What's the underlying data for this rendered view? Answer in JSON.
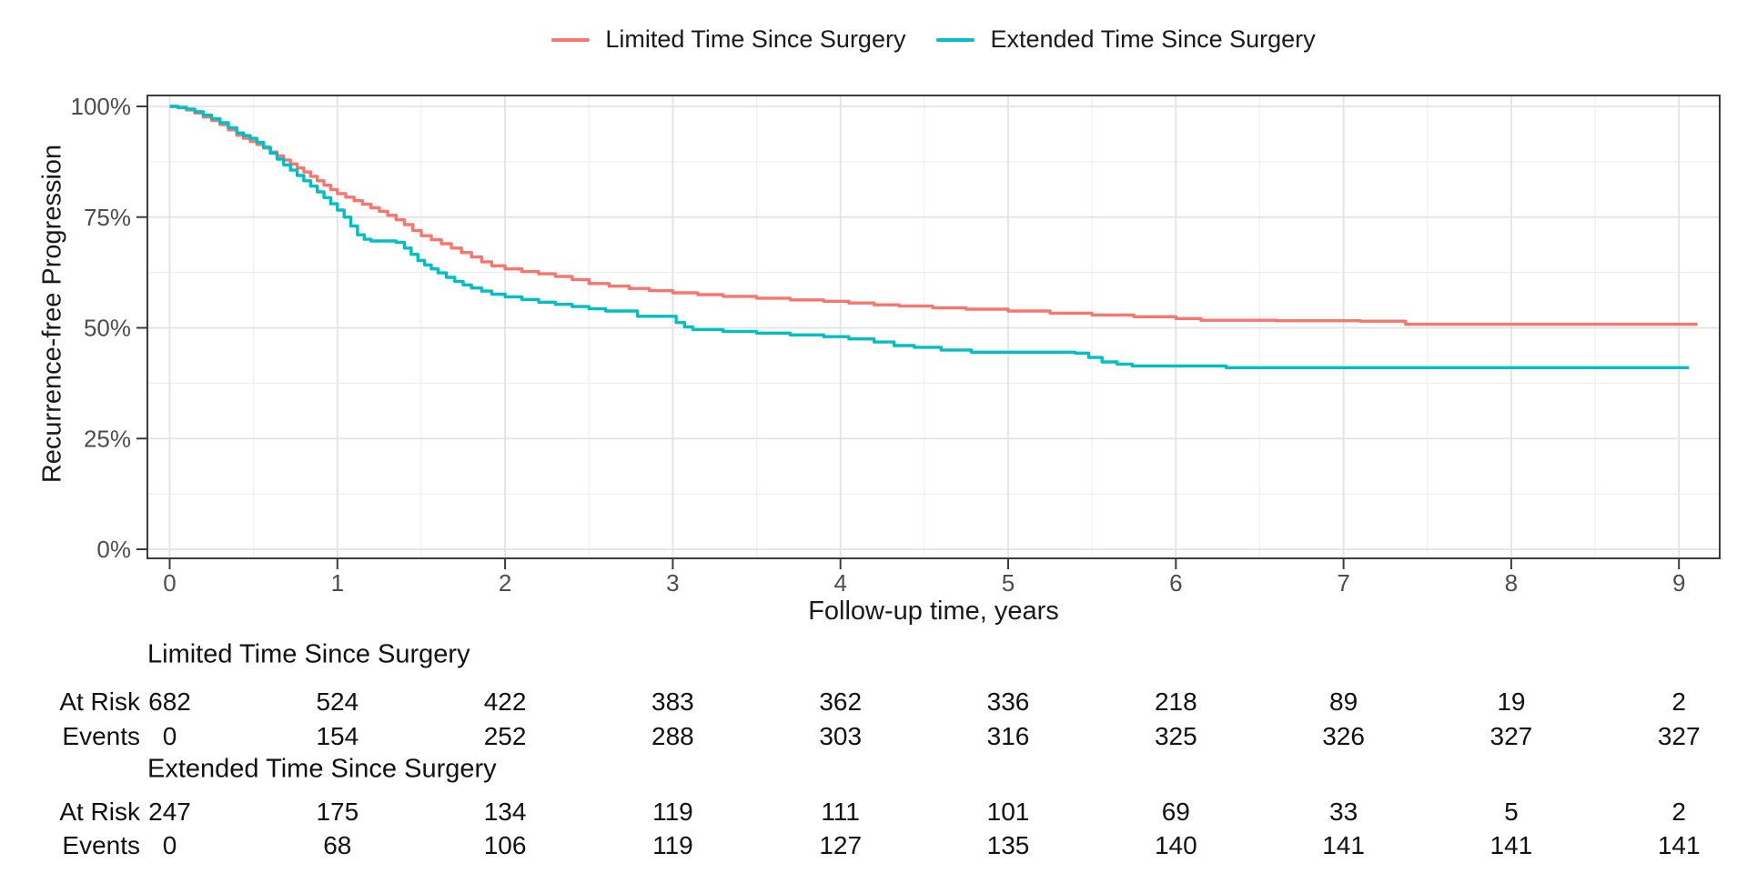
{
  "chart_data": {
    "type": "line",
    "subtype": "kaplan-meier-step-curves",
    "title": "",
    "xlabel": "Follow-up time, years",
    "ylabel": "Recurrence-free Progression",
    "xlim": [
      -0.13,
      9.25
    ],
    "ylim": [
      0,
      100
    ],
    "x_ticks": [
      {
        "v": 0,
        "label": "0"
      },
      {
        "v": 1,
        "label": "1"
      },
      {
        "v": 2,
        "label": "2"
      },
      {
        "v": 3,
        "label": "3"
      },
      {
        "v": 4,
        "label": "4"
      },
      {
        "v": 5,
        "label": "5"
      },
      {
        "v": 6,
        "label": "6"
      },
      {
        "v": 7,
        "label": "7"
      },
      {
        "v": 8,
        "label": "8"
      },
      {
        "v": 9,
        "label": "9"
      }
    ],
    "y_ticks": [
      {
        "v": 0,
        "label": "0%"
      },
      {
        "v": 25,
        "label": "25%"
      },
      {
        "v": 50,
        "label": "50%"
      },
      {
        "v": 75,
        "label": "75%"
      },
      {
        "v": 100,
        "label": "100%"
      }
    ],
    "grid": {
      "major_x_every": 1,
      "minor_x_every": 0.5,
      "major_y_every": 25,
      "minor_y_every": 12.5,
      "major_color": "#e3e3e3",
      "minor_color": "#efefef"
    },
    "legend_position": "top-center",
    "panel_border_color": "#3c3c3c",
    "tick_label_color": "#4d4d4d",
    "series": [
      {
        "name": "Limited Time Since Surgery",
        "color": "#F8766D",
        "points": [
          [
            0,
            100
          ],
          [
            0.05,
            99.7
          ],
          [
            0.1,
            99.2
          ],
          [
            0.15,
            98.5
          ],
          [
            0.2,
            97.6
          ],
          [
            0.25,
            96.8
          ],
          [
            0.3,
            95.9
          ],
          [
            0.35,
            94.7
          ],
          [
            0.4,
            93.5
          ],
          [
            0.44,
            92.8
          ],
          [
            0.48,
            92.1
          ],
          [
            0.52,
            91.4
          ],
          [
            0.56,
            90.6
          ],
          [
            0.6,
            89.7
          ],
          [
            0.64,
            88.8
          ],
          [
            0.68,
            87.9
          ],
          [
            0.72,
            87.0
          ],
          [
            0.76,
            86.1
          ],
          [
            0.8,
            85.2
          ],
          [
            0.84,
            84.2
          ],
          [
            0.88,
            83.2
          ],
          [
            0.92,
            82.2
          ],
          [
            0.96,
            81.2
          ],
          [
            1.0,
            80.3
          ],
          [
            1.05,
            79.5
          ],
          [
            1.1,
            78.7
          ],
          [
            1.15,
            77.9
          ],
          [
            1.2,
            77.1
          ],
          [
            1.25,
            76.3
          ],
          [
            1.3,
            75.4
          ],
          [
            1.35,
            74.4
          ],
          [
            1.4,
            73.3
          ],
          [
            1.45,
            72.0
          ],
          [
            1.5,
            70.8
          ],
          [
            1.56,
            69.9
          ],
          [
            1.62,
            69.0
          ],
          [
            1.68,
            68.0
          ],
          [
            1.74,
            67.0
          ],
          [
            1.8,
            66.0
          ],
          [
            1.86,
            64.9
          ],
          [
            1.92,
            64.0
          ],
          [
            2.0,
            63.3
          ],
          [
            2.1,
            62.7
          ],
          [
            2.2,
            62.2
          ],
          [
            2.3,
            61.6
          ],
          [
            2.4,
            60.9
          ],
          [
            2.5,
            60.0
          ],
          [
            2.62,
            59.4
          ],
          [
            2.74,
            58.9
          ],
          [
            2.86,
            58.4
          ],
          [
            3.0,
            57.9
          ],
          [
            3.15,
            57.5
          ],
          [
            3.3,
            57.1
          ],
          [
            3.5,
            56.7
          ],
          [
            3.7,
            56.3
          ],
          [
            3.9,
            56.0
          ],
          [
            4.05,
            55.6
          ],
          [
            4.2,
            55.2
          ],
          [
            4.35,
            54.9
          ],
          [
            4.55,
            54.5
          ],
          [
            4.75,
            54.2
          ],
          [
            5.0,
            53.8
          ],
          [
            5.25,
            53.3
          ],
          [
            5.5,
            52.9
          ],
          [
            5.75,
            52.5
          ],
          [
            6.0,
            52.1
          ],
          [
            6.15,
            51.7
          ],
          [
            6.6,
            51.6
          ],
          [
            7.1,
            51.5
          ],
          [
            7.37,
            50.8
          ],
          [
            9.11,
            50.8
          ]
        ]
      },
      {
        "name": "Extended Time Since Surgery",
        "color": "#00BFC4",
        "points": [
          [
            0,
            100
          ],
          [
            0.05,
            99.8
          ],
          [
            0.1,
            99.4
          ],
          [
            0.15,
            98.8
          ],
          [
            0.2,
            98.0
          ],
          [
            0.25,
            97.2
          ],
          [
            0.3,
            96.3
          ],
          [
            0.35,
            95.2
          ],
          [
            0.4,
            94.0
          ],
          [
            0.44,
            93.4
          ],
          [
            0.48,
            92.8
          ],
          [
            0.52,
            91.9
          ],
          [
            0.56,
            90.8
          ],
          [
            0.6,
            89.4
          ],
          [
            0.64,
            88.1
          ],
          [
            0.68,
            86.8
          ],
          [
            0.72,
            85.6
          ],
          [
            0.76,
            84.4
          ],
          [
            0.8,
            83.2
          ],
          [
            0.84,
            82.0
          ],
          [
            0.88,
            80.7
          ],
          [
            0.92,
            79.4
          ],
          [
            0.96,
            78.0
          ],
          [
            1.0,
            76.6
          ],
          [
            1.04,
            75.0
          ],
          [
            1.08,
            73.0
          ],
          [
            1.12,
            71.0
          ],
          [
            1.16,
            70.0
          ],
          [
            1.2,
            69.6
          ],
          [
            1.35,
            69.3
          ],
          [
            1.4,
            68.0
          ],
          [
            1.44,
            66.6
          ],
          [
            1.48,
            65.2
          ],
          [
            1.52,
            64.2
          ],
          [
            1.56,
            63.3
          ],
          [
            1.6,
            62.4
          ],
          [
            1.65,
            61.4
          ],
          [
            1.7,
            60.5
          ],
          [
            1.75,
            59.7
          ],
          [
            1.8,
            59.0
          ],
          [
            1.86,
            58.3
          ],
          [
            1.92,
            57.6
          ],
          [
            2.0,
            57.0
          ],
          [
            2.1,
            56.4
          ],
          [
            2.2,
            55.8
          ],
          [
            2.3,
            55.3
          ],
          [
            2.4,
            54.8
          ],
          [
            2.5,
            54.3
          ],
          [
            2.6,
            53.8
          ],
          [
            2.79,
            52.6
          ],
          [
            3.02,
            51.2
          ],
          [
            3.07,
            50.2
          ],
          [
            3.12,
            49.6
          ],
          [
            3.3,
            49.2
          ],
          [
            3.5,
            48.8
          ],
          [
            3.7,
            48.4
          ],
          [
            3.9,
            48.0
          ],
          [
            4.05,
            47.5
          ],
          [
            4.2,
            46.8
          ],
          [
            4.32,
            46.0
          ],
          [
            4.44,
            45.6
          ],
          [
            4.6,
            45.0
          ],
          [
            4.78,
            44.5
          ],
          [
            5.4,
            44.3
          ],
          [
            5.48,
            43.3
          ],
          [
            5.56,
            42.3
          ],
          [
            5.65,
            41.8
          ],
          [
            5.74,
            41.4
          ],
          [
            6.3,
            41.0
          ],
          [
            9.06,
            41.0
          ]
        ]
      }
    ],
    "risk_tables": [
      {
        "group": "Limited Time Since Surgery",
        "rows": [
          {
            "label": "At Risk",
            "values": [
              682,
              524,
              422,
              383,
              362,
              336,
              218,
              89,
              19,
              2
            ]
          },
          {
            "label": "Events",
            "values": [
              0,
              154,
              252,
              288,
              303,
              316,
              325,
              326,
              327,
              327
            ]
          }
        ]
      },
      {
        "group": "Extended Time Since Surgery",
        "rows": [
          {
            "label": "At Risk",
            "values": [
              247,
              175,
              134,
              119,
              111,
              101,
              69,
              33,
              5,
              2
            ]
          },
          {
            "label": "Events",
            "values": [
              0,
              68,
              106,
              119,
              127,
              135,
              140,
              141,
              141,
              141
            ]
          }
        ]
      }
    ]
  }
}
